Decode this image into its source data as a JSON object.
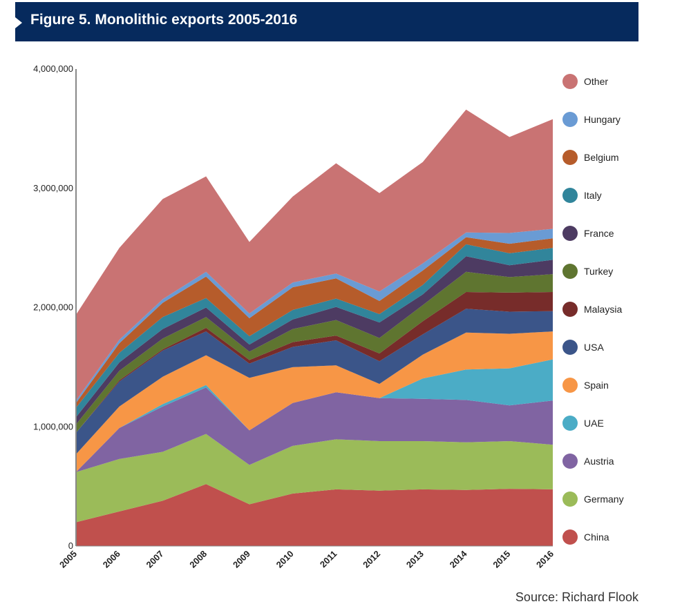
{
  "header": {
    "title": "Figure 5. Monolithic exports 2005-2016"
  },
  "footer": {
    "source": "Source: Richard Flook"
  },
  "chart_data": {
    "type": "area",
    "stacked": true,
    "title": "Figure 5. Monolithic exports 2005-2016",
    "xlabel": "",
    "ylabel": "",
    "x": [
      "2005",
      "2006",
      "2007",
      "2008",
      "2009",
      "2010",
      "2011",
      "2012",
      "2013",
      "2014",
      "2015",
      "2016"
    ],
    "ylim": [
      0,
      4000000
    ],
    "yticks": [
      0,
      1000000,
      2000000,
      3000000,
      4000000
    ],
    "ytick_labels": [
      "0",
      "1,000,000",
      "2,000,000",
      "3,000,000",
      "4,000,000"
    ],
    "grid": false,
    "legend_position": "right",
    "series": [
      {
        "name": "China",
        "color": "#c0504d",
        "values": [
          200000,
          290000,
          380000,
          520000,
          350000,
          440000,
          475000,
          465000,
          475000,
          470000,
          480000,
          475000
        ]
      },
      {
        "name": "Germany",
        "color": "#9bbb59",
        "values": [
          420000,
          440000,
          410000,
          420000,
          330000,
          400000,
          420000,
          415000,
          405000,
          400000,
          400000,
          375000
        ]
      },
      {
        "name": "Austria",
        "color": "#8064a2",
        "values": [
          0,
          260000,
          380000,
          390000,
          290000,
          360000,
          395000,
          360000,
          355000,
          355000,
          300000,
          370000
        ]
      },
      {
        "name": "UAE",
        "color": "#4bacc6",
        "values": [
          0,
          0,
          20000,
          20000,
          0,
          0,
          0,
          0,
          170000,
          255000,
          310000,
          345000
        ]
      },
      {
        "name": "Spain",
        "color": "#f79646",
        "values": [
          150000,
          180000,
          230000,
          250000,
          440000,
          300000,
          225000,
          120000,
          200000,
          310000,
          290000,
          235000
        ]
      },
      {
        "name": "USA",
        "color": "#3b5589",
        "values": [
          180000,
          210000,
          220000,
          200000,
          120000,
          170000,
          210000,
          190000,
          170000,
          200000,
          185000,
          170000
        ]
      },
      {
        "name": "Malaysia",
        "color": "#772c2a",
        "values": [
          0,
          10000,
          10000,
          30000,
          30000,
          40000,
          40000,
          65000,
          110000,
          140000,
          160000,
          160000
        ]
      },
      {
        "name": "Turkey",
        "color": "#5f7530",
        "values": [
          70000,
          80000,
          90000,
          90000,
          70000,
          110000,
          130000,
          130000,
          135000,
          170000,
          130000,
          150000
        ]
      },
      {
        "name": "France",
        "color": "#4d3b62",
        "values": [
          60000,
          70000,
          80000,
          80000,
          60000,
          80000,
          110000,
          130000,
          90000,
          130000,
          100000,
          120000
        ]
      },
      {
        "name": "Italy",
        "color": "#31859b",
        "values": [
          80000,
          80000,
          100000,
          80000,
          70000,
          80000,
          70000,
          70000,
          80000,
          100000,
          100000,
          100000
        ]
      },
      {
        "name": "Belgium",
        "color": "#b65c2b",
        "values": [
          40000,
          80000,
          120000,
          180000,
          150000,
          190000,
          170000,
          110000,
          120000,
          60000,
          80000,
          80000
        ]
      },
      {
        "name": "Hungary",
        "color": "#6a9bd4",
        "values": [
          20000,
          30000,
          30000,
          40000,
          40000,
          40000,
          40000,
          80000,
          60000,
          40000,
          90000,
          80000
        ]
      },
      {
        "name": "Other",
        "color": "#c97373",
        "values": [
          720000,
          770000,
          840000,
          800000,
          600000,
          720000,
          925000,
          825000,
          850000,
          1030000,
          805000,
          920000
        ]
      }
    ]
  }
}
